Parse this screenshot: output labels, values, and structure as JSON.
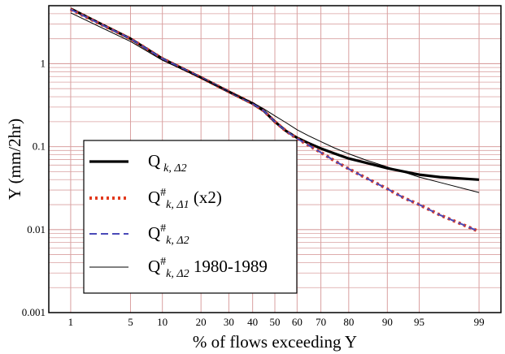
{
  "chart_data": {
    "type": "line",
    "xlabel": "% of flows exceeding Y",
    "ylabel": "Y (mm/2hr)",
    "x_scale": "normal-probability",
    "y_scale": "log",
    "xlim": [
      0.5,
      99.5
    ],
    "ylim": [
      0.001,
      5
    ],
    "grid": true,
    "x_ticks": [
      1,
      5,
      10,
      20,
      30,
      40,
      50,
      60,
      70,
      80,
      90,
      95,
      99
    ],
    "y_ticks": [
      {
        "value": 0.001,
        "label": "0.001"
      },
      {
        "value": 0.01,
        "label": "0.01"
      },
      {
        "value": 0.1,
        "label": "0.1"
      },
      {
        "value": 1,
        "label": "1"
      }
    ],
    "legend_position": "bottom-left",
    "series": [
      {
        "name": "Q k, Δ2",
        "color": "#000000",
        "style": "thick-solid",
        "x": [
          1,
          5,
          10,
          20,
          30,
          40,
          45,
          50,
          55,
          60,
          65,
          70,
          75,
          80,
          85,
          90,
          93,
          95,
          97,
          99
        ],
        "y": [
          4.6,
          2.0,
          1.15,
          0.68,
          0.46,
          0.33,
          0.27,
          0.2,
          0.155,
          0.128,
          0.11,
          0.095,
          0.083,
          0.072,
          0.064,
          0.055,
          0.05,
          0.046,
          0.043,
          0.04
        ]
      },
      {
        "name": "Q# k, Δ1 (x2)",
        "color": "#e23a1e",
        "style": "dotted",
        "x": [
          1,
          5,
          10,
          20,
          30,
          40,
          45,
          50,
          55,
          60,
          65,
          70,
          75,
          80,
          85,
          90,
          93,
          95,
          97,
          99
        ],
        "y": [
          4.5,
          2.0,
          1.15,
          0.68,
          0.46,
          0.33,
          0.27,
          0.2,
          0.155,
          0.125,
          0.104,
          0.085,
          0.068,
          0.054,
          0.042,
          0.031,
          0.024,
          0.02,
          0.015,
          0.0095
        ]
      },
      {
        "name": "Q# k, Δ2",
        "color": "#4a4ab8",
        "style": "dashed",
        "x": [
          1,
          5,
          10,
          20,
          30,
          40,
          45,
          50,
          55,
          60,
          65,
          70,
          75,
          80,
          85,
          90,
          93,
          95,
          97,
          99
        ],
        "y": [
          4.5,
          2.0,
          1.15,
          0.68,
          0.46,
          0.33,
          0.27,
          0.2,
          0.155,
          0.125,
          0.104,
          0.085,
          0.068,
          0.054,
          0.042,
          0.031,
          0.024,
          0.02,
          0.015,
          0.0095
        ]
      },
      {
        "name": "Q# k, Δ2 1980-1989",
        "color": "#000000",
        "style": "thin-solid",
        "x": [
          1,
          5,
          10,
          20,
          30,
          40,
          45,
          50,
          55,
          60,
          65,
          70,
          75,
          80,
          85,
          90,
          93,
          95,
          97,
          99
        ],
        "y": [
          4.1,
          1.85,
          1.1,
          0.67,
          0.46,
          0.34,
          0.285,
          0.235,
          0.195,
          0.16,
          0.135,
          0.115,
          0.097,
          0.082,
          0.069,
          0.057,
          0.049,
          0.043,
          0.037,
          0.028
        ]
      }
    ],
    "legend": [
      {
        "base": "Q",
        "sup": "",
        "sub": "k, Δ2",
        "suffix": ""
      },
      {
        "base": "Q",
        "sup": "#",
        "sub": "k, Δ1",
        "suffix": " (x2)"
      },
      {
        "base": "Q",
        "sup": "#",
        "sub": "k, Δ2",
        "suffix": ""
      },
      {
        "base": "Q",
        "sup": "#",
        "sub": "k, Δ2",
        "suffix": " 1980-1989"
      }
    ]
  }
}
